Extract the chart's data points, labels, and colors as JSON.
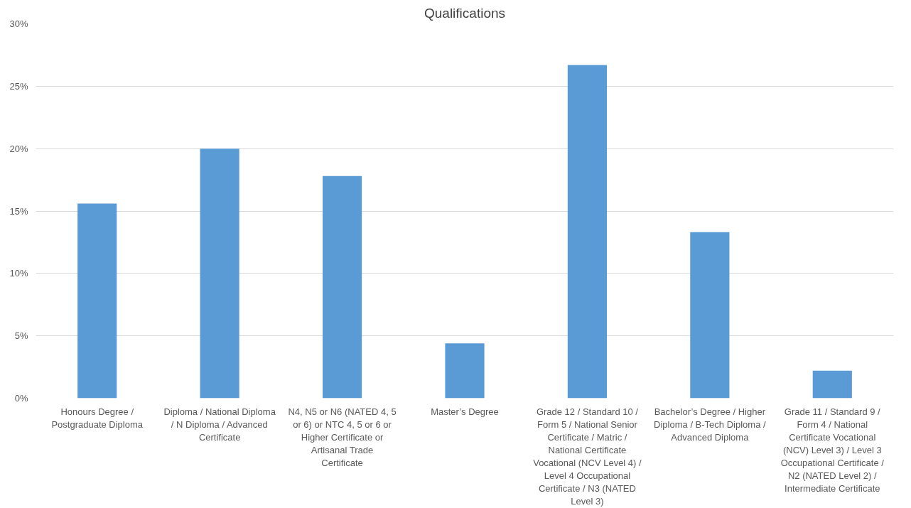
{
  "chart_data": {
    "type": "bar",
    "title": "Qualifications",
    "categories": [
      "Honours Degree / Postgraduate Diploma",
      "Diploma / National Diploma / N Diploma / Advanced Certificate",
      "N4, N5 or N6 (NATED 4, 5 or 6) or NTC 4, 5 or 6 or Higher Certificate or Artisanal Trade Certificate",
      "Master’s Degree",
      "Grade 12 / Standard 10 / Form 5 / National Senior Certificate / Matric / National Certificate Vocational (NCV Level 4) / Level 4 Occupational Certificate / N3 (NATED Level 3)",
      "Bachelor’s Degree / Higher Diploma / B-Tech Diploma / Advanced Diploma",
      "Grade 11 / Standard 9 / Form 4 / National Certificate Vocational (NCV) Level 3) / Level 3 Occupational Certificate / N2 (NATED Level 2) / Intermediate Certificate"
    ],
    "values": [
      15.6,
      20.0,
      17.8,
      4.4,
      26.7,
      13.3,
      2.2
    ],
    "color": "#5b9bd5",
    "ylim": [
      0,
      30
    ],
    "yticks": [
      {
        "value": 0,
        "label": "0%"
      },
      {
        "value": 5,
        "label": "5%"
      },
      {
        "value": 10,
        "label": "10%"
      },
      {
        "value": 15,
        "label": "15%"
      },
      {
        "value": 20,
        "label": "20%"
      },
      {
        "value": 25,
        "label": "25%"
      },
      {
        "value": 30,
        "label": "30%"
      }
    ],
    "grid": "y"
  }
}
